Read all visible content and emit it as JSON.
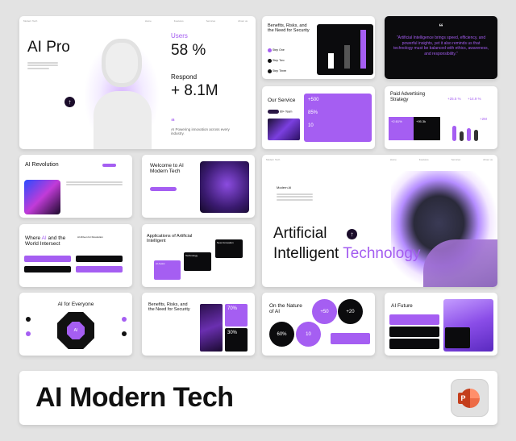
{
  "slide1": {
    "brand": "Modern Tech",
    "nav": [
      "Home",
      "Features",
      "Services",
      "About us"
    ],
    "title": "AI Pro",
    "users_label": "Users",
    "users_value": "58 %",
    "respond_label": "Respond",
    "respond_value": "+ 8.1M",
    "quote_mark": "“",
    "tagline": "AI Powering innovation across every industry."
  },
  "slide_benefits": {
    "title": "Benefits, Risks, and the Need for Security",
    "items": [
      "Step One",
      "Step Two",
      "Step Three"
    ],
    "chart_values": [
      2,
      3,
      5
    ]
  },
  "slide_quote": {
    "mark": "“",
    "text": "\"Artificial Intelligence brings speed, efficiency, and powerful insights, yet it also reminds us that technology must be balanced with ethics, awareness, and responsibility.\""
  },
  "slide_service": {
    "title": "Our Service",
    "team": "80+ Team",
    "stats": [
      "+500",
      "85%",
      "10"
    ]
  },
  "slide_paid": {
    "title": "Paid Advertising Strategy",
    "kpi1": "+25.5 %",
    "kpi2": "+14.9 %",
    "card1": "+2.61%",
    "card2": "+95.3k",
    "extra": "+2M",
    "bars": [
      0.85,
      0.55,
      0.75,
      0.65
    ]
  },
  "slide_revolution": {
    "title": "AI Revolution"
  },
  "slide_welcome": {
    "title": "Welcome to AI Modern Tech"
  },
  "slide_hero": {
    "brand": "Modern Tech",
    "nav": [
      "Home",
      "Features",
      "Services",
      "About us"
    ],
    "kicker": "Modern AI",
    "line1": "Artificial",
    "line2a": "Intelligent",
    "line2b": "Technology"
  },
  "slide_where": {
    "title_a": "Where ",
    "title_ai": "AI",
    "title_b": " and the World Intersect",
    "sub": "AI-Driven for Revolution"
  },
  "slide_apps": {
    "title": "Applications of Artificial Intelligent",
    "cards": [
      "AI Assist",
      "Technology",
      "New Innovation"
    ]
  },
  "slide_everyone": {
    "title": "AI for Everyone",
    "center": "AI"
  },
  "slide_benefits2": {
    "title": "Benefits, Risks, and the Need for Security",
    "stat1": "70%",
    "stat2": "30%"
  },
  "slide_nature": {
    "title": "On the Nature of AI",
    "stats": [
      "+50",
      "+20",
      "60%",
      "10"
    ]
  },
  "slide_future": {
    "title": "AI Future"
  },
  "banner": {
    "title": "AI Modern Tech",
    "app_icon_letter": "P"
  },
  "colors": {
    "accent": "#a55ef2",
    "dark": "#0b0b0d",
    "ppt": "#d24726"
  }
}
